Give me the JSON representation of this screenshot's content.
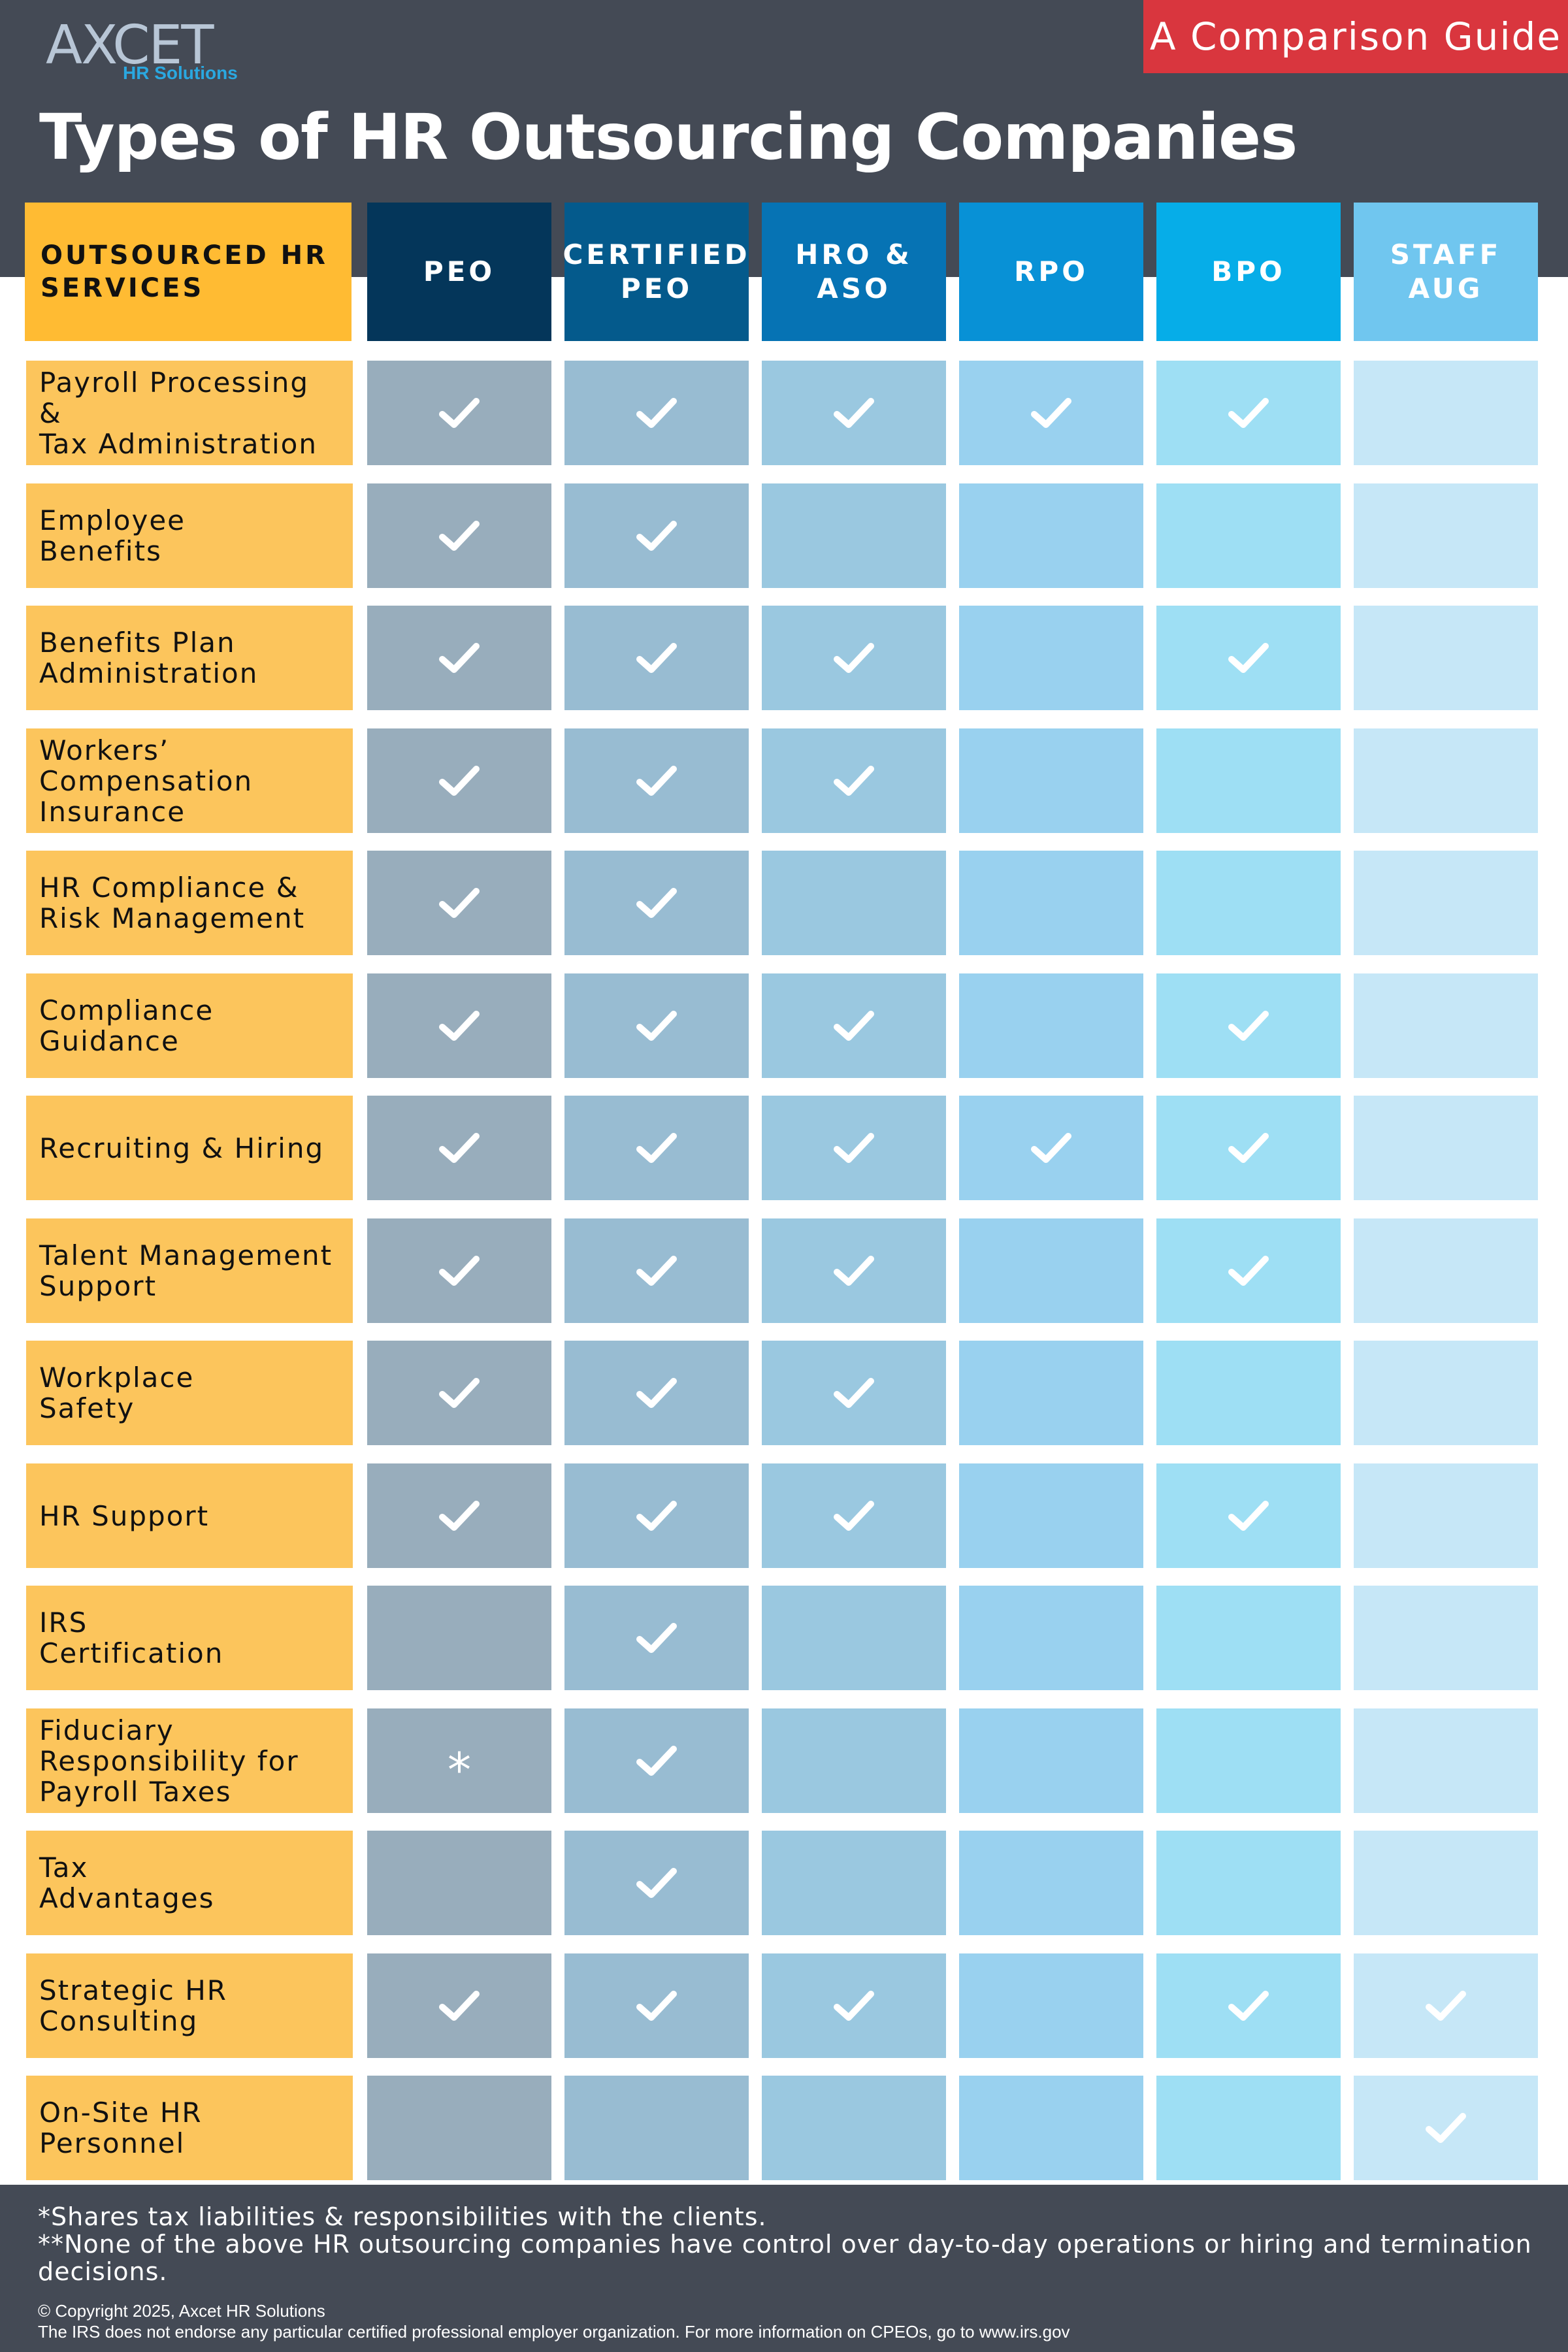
{
  "brand": {
    "logo_text": "AXCET",
    "logo_sub": "HR Solutions"
  },
  "badge": "A Comparison Guide",
  "title": "Types of HR Outsourcing Companies",
  "corner_header": [
    "OUTSOURCED HR",
    "SERVICES"
  ],
  "columns": [
    {
      "label": "PEO",
      "header_color": "#04365a",
      "cell_color": "#98adbc"
    },
    {
      "label": "CERTIFIED PEO",
      "header_color": "#045a8c",
      "cell_color": "#98bcd2"
    },
    {
      "label": "HRO & ASO",
      "header_color": "#0673b4",
      "cell_color": "#9ac8e0"
    },
    {
      "label": "RPO",
      "header_color": "#0891d6",
      "cell_color": "#99d1ef"
    },
    {
      "label": "BPO",
      "header_color": "#06ade8",
      "cell_color": "#9edff4"
    },
    {
      "label": "STAFF AUG",
      "header_color": "#70c6ef",
      "cell_color": "#c6e7f7"
    }
  ],
  "rows": [
    {
      "label": "Payroll Processing &\nTax Administration",
      "marks": [
        "check",
        "check",
        "check",
        "check",
        "check",
        ""
      ]
    },
    {
      "label": "Employee\nBenefits",
      "marks": [
        "check",
        "check",
        "",
        "",
        "",
        ""
      ]
    },
    {
      "label": "Benefits Plan\nAdministration",
      "marks": [
        "check",
        "check",
        "check",
        "",
        "check",
        ""
      ]
    },
    {
      "label": "Workers’\nCompensation\nInsurance",
      "marks": [
        "check",
        "check",
        "check",
        "",
        "",
        ""
      ]
    },
    {
      "label": "HR Compliance &\nRisk Management",
      "marks": [
        "check",
        "check",
        "",
        "",
        "",
        ""
      ]
    },
    {
      "label": "Compliance\nGuidance",
      "marks": [
        "check",
        "check",
        "check",
        "",
        "check",
        ""
      ]
    },
    {
      "label": "Recruiting & Hiring",
      "marks": [
        "check",
        "check",
        "check",
        "check",
        "check",
        ""
      ]
    },
    {
      "label": "Talent Management\nSupport",
      "marks": [
        "check",
        "check",
        "check",
        "",
        "check",
        ""
      ]
    },
    {
      "label": "Workplace\nSafety",
      "marks": [
        "check",
        "check",
        "check",
        "",
        "",
        ""
      ]
    },
    {
      "label": "HR Support",
      "marks": [
        "check",
        "check",
        "check",
        "",
        "check",
        ""
      ]
    },
    {
      "label": "IRS\nCertification",
      "marks": [
        "",
        "check",
        "",
        "",
        "",
        ""
      ]
    },
    {
      "label": "Fiduciary\nResponsibility for\nPayroll Taxes",
      "marks": [
        "*",
        "check",
        "",
        "",
        "",
        ""
      ]
    },
    {
      "label": "Tax\nAdvantages",
      "marks": [
        "",
        "check",
        "",
        "",
        "",
        ""
      ]
    },
    {
      "label": "Strategic HR\nConsulting",
      "marks": [
        "check",
        "check",
        "check",
        "",
        "check",
        "check"
      ]
    },
    {
      "label": "On-Site HR Personnel",
      "marks": [
        "",
        "",
        "",
        "",
        "",
        "check"
      ]
    }
  ],
  "footnotes": [
    "*Shares tax liabilities & responsibilities with the clients.",
    "**None of the above HR outsourcing companies have control over day-to-day operations or hiring and termination decisions."
  ],
  "copyright": "© Copyright 2025, Axcet HR Solutions",
  "disclaimer": "The IRS does not endorse any particular certified professional employer organization. For more information on CPEOs, go to www.irs.gov",
  "icons": {
    "check": "check-icon",
    "asterisk": "asterisk-mark"
  }
}
